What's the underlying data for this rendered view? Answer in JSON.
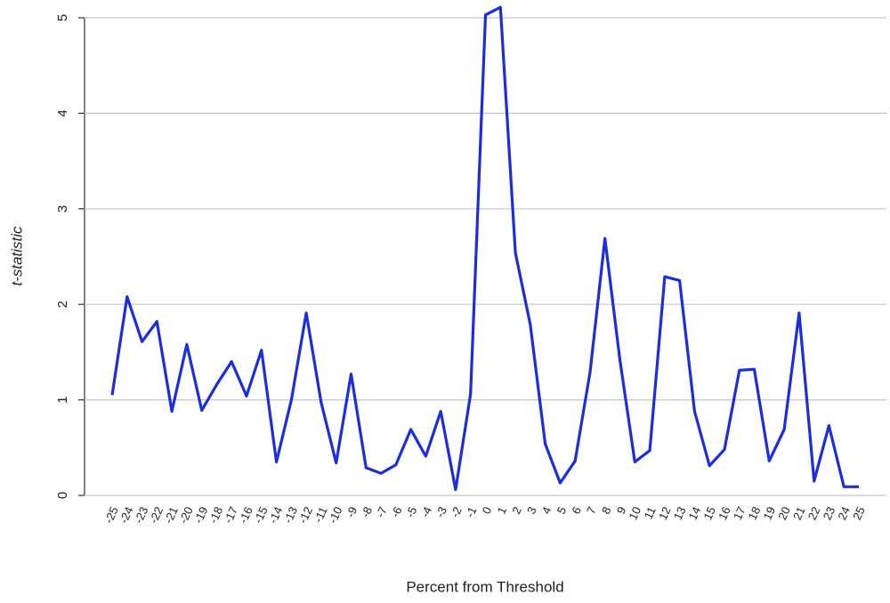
{
  "chart_data": {
    "type": "line",
    "x_label": "Percent from Threshold",
    "y_label": "t-statistic",
    "categories": [
      -25,
      -24,
      -23,
      -22,
      -21,
      -20,
      -19,
      -18,
      -17,
      -16,
      -15,
      -14,
      -13,
      -12,
      -11,
      -10,
      -9,
      -8,
      -7,
      -6,
      -5,
      -4,
      -3,
      -2,
      -1,
      0,
      1,
      2,
      3,
      4,
      5,
      6,
      7,
      8,
      9,
      10,
      11,
      12,
      13,
      14,
      15,
      16,
      17,
      18,
      19,
      20,
      21,
      22,
      23,
      24,
      25
    ],
    "series": [
      {
        "color": "#1a2ee0",
        "values": [
          1.05,
          2.08,
          1.61,
          1.82,
          0.88,
          1.58,
          0.89,
          1.16,
          1.4,
          1.04,
          1.52,
          0.35,
          1.0,
          1.91,
          0.97,
          0.34,
          1.27,
          0.29,
          0.23,
          0.32,
          0.69,
          0.41,
          0.88,
          0.06,
          1.06,
          5.03,
          5.11,
          2.54,
          1.79,
          0.54,
          0.13,
          0.36,
          1.29,
          2.69,
          1.42,
          0.35,
          0.47,
          2.29,
          2.25,
          0.88,
          0.31,
          0.48,
          1.31,
          1.32,
          0.36,
          0.69,
          1.91,
          0.15,
          0.73,
          0.09,
          0.09
        ]
      }
    ],
    "ylim": [
      0,
      5
    ],
    "yticks": [
      0,
      1,
      2,
      3,
      4,
      5
    ],
    "grid": true
  }
}
